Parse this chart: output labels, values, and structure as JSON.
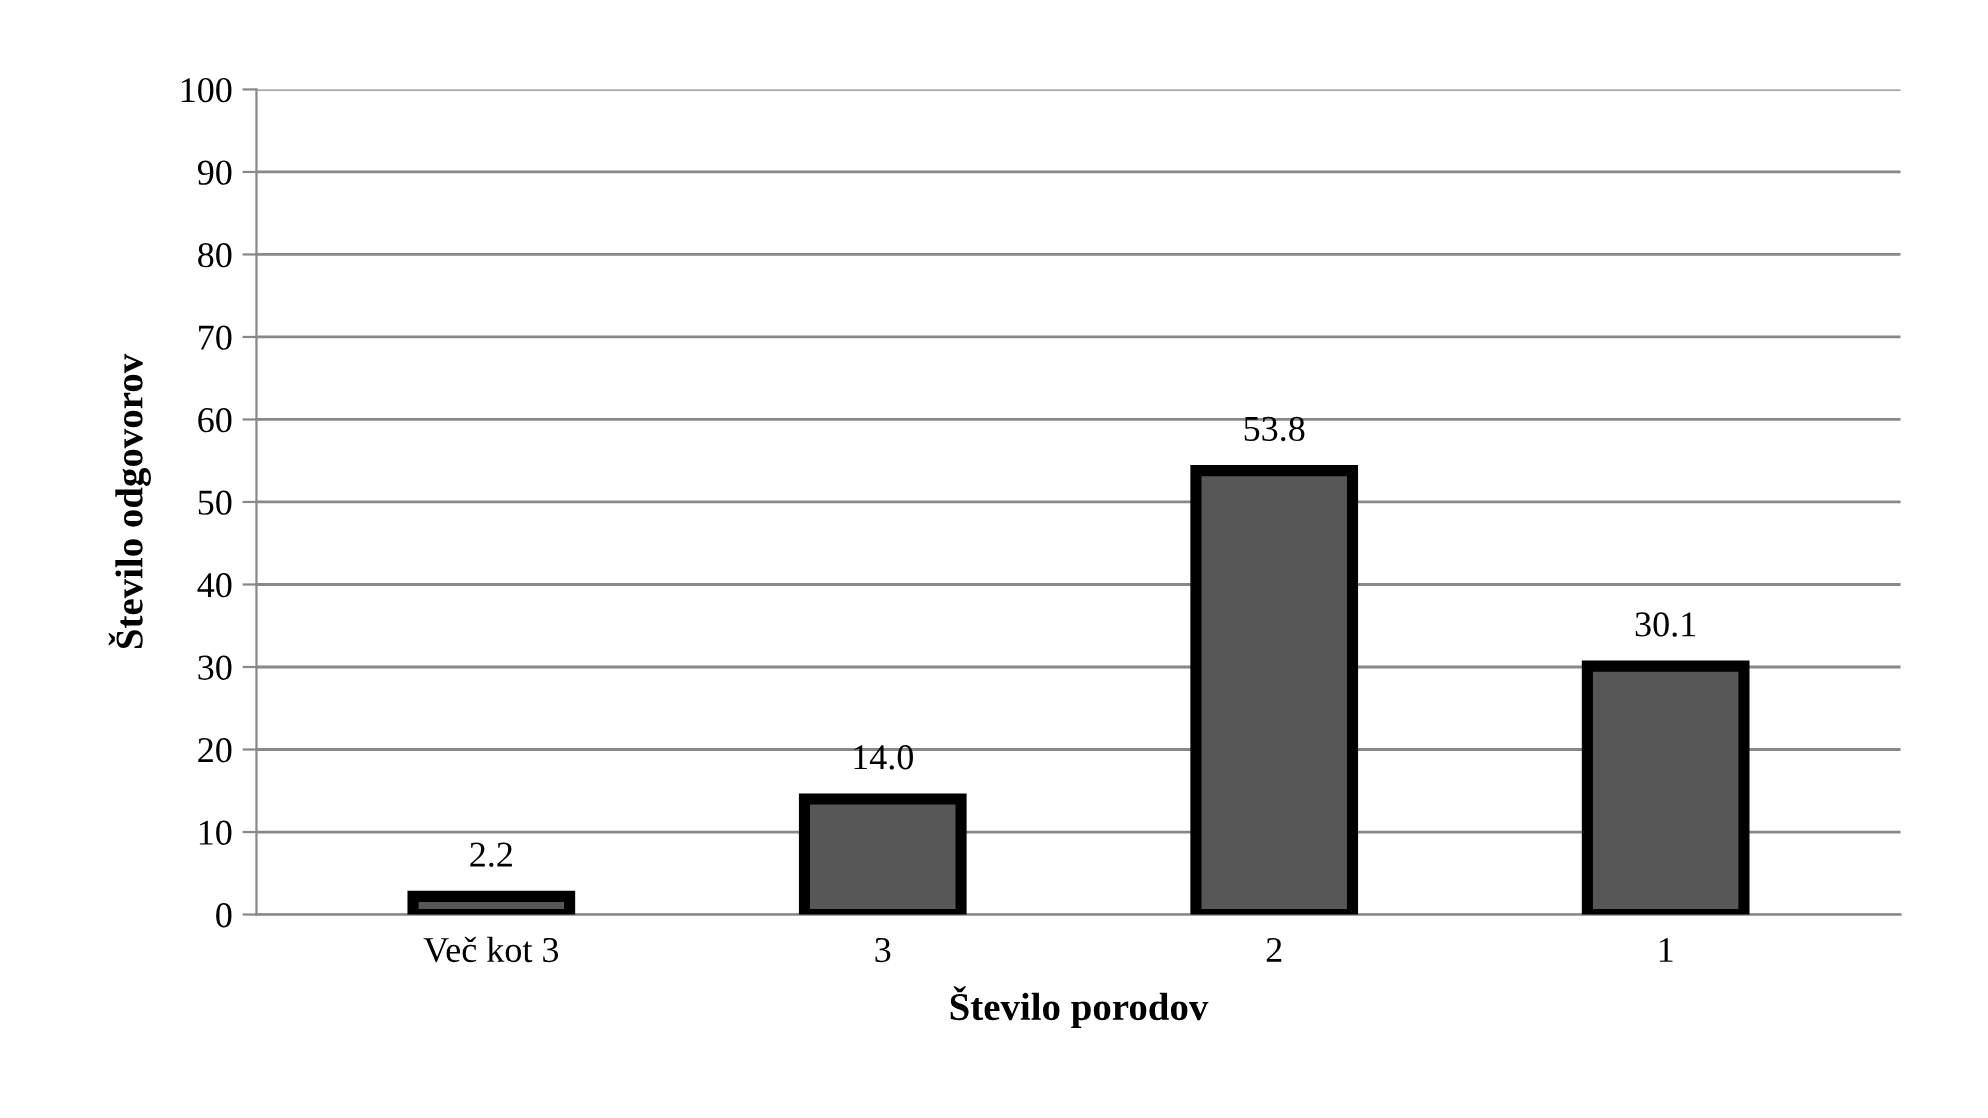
{
  "chart_data": {
    "type": "bar",
    "xlabel": "Število porodov",
    "ylabel": "Število odgovorov",
    "categories": [
      "Več kot 3",
      "3",
      "2",
      "1"
    ],
    "values": [
      2.2,
      14.0,
      53.8,
      30.1
    ],
    "value_labels": [
      "2.2",
      "14.0",
      "53.8",
      "30.1"
    ],
    "color": "#575757",
    "ylim": [
      0,
      100
    ],
    "yticks": [
      0,
      10,
      20,
      30,
      40,
      50,
      60,
      70,
      80,
      90,
      100
    ],
    "grid": "y"
  }
}
